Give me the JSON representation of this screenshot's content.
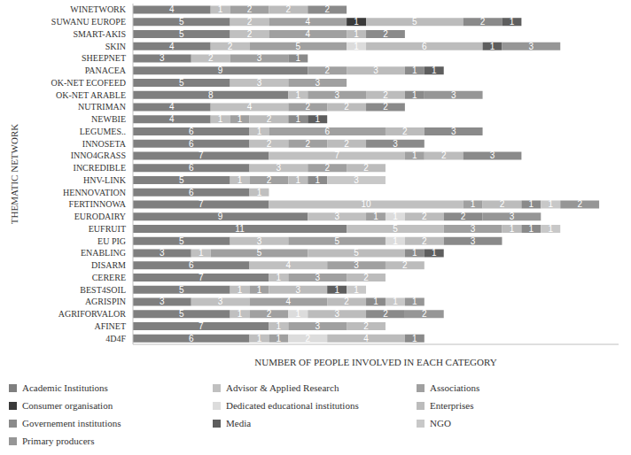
{
  "chart_data": {
    "type": "bar",
    "orientation": "horizontal",
    "stacked": true,
    "data_labels": true,
    "grid": false,
    "legend": "bottom",
    "tick_labels": "y",
    "x_label": "NUMBER OF PEOPLE INVOLVED IN EACH CATEGORY",
    "y_label": "THEMATIC NETWORK",
    "xlim": [
      0,
      25
    ],
    "categories": [
      "WINETWORK",
      "SUWANU EUROPE",
      "SMART-AKIS",
      "SKIN",
      "SHEEPNET",
      "PANACEA",
      "OK-NET ECOFEED",
      "OK-NET ARABLE",
      "NUTRIMAN",
      "NEWBIE",
      "LEGUMES..",
      "INNOSETA",
      "INNO4GRASS",
      "INCREDIBLE",
      "HNV-LINK",
      "HENNOVATION",
      "FERTINNOWA",
      "EURODAIRY",
      "EUFRUIT",
      "EU PIG",
      "ENABLING",
      "DISARM",
      "CERERE",
      "BEST4SOIL",
      "AGRISPIN",
      "AGRIFORVALOR",
      "AFINET",
      "4D4F"
    ],
    "series": [
      {
        "name": "Academic Institutions",
        "color": "#7f7f7f",
        "values": [
          4,
          5,
          5,
          4,
          3,
          9,
          5,
          8,
          4,
          4,
          6,
          6,
          7,
          6,
          5,
          6,
          7,
          9,
          11,
          5,
          3,
          6,
          7,
          5,
          3,
          5,
          7,
          6
        ]
      },
      {
        "name": "Advisor & Applied Research",
        "color": "#c0c0c0",
        "values": [
          1,
          2,
          2,
          2,
          2,
          null,
          3,
          1,
          4,
          1,
          1,
          2,
          7,
          3,
          1,
          1,
          10,
          3,
          5,
          3,
          1,
          4,
          1,
          1,
          3,
          1,
          1,
          1
        ]
      },
      {
        "name": "Associations",
        "color": "#a0a0a0",
        "values": [
          2,
          4,
          4,
          5,
          3,
          2,
          3,
          3,
          2,
          1,
          6,
          2,
          1,
          2,
          2,
          null,
          1,
          1,
          3,
          5,
          5,
          3,
          3,
          1,
          4,
          2,
          3,
          1
        ]
      },
      {
        "name": "Consumer organisation",
        "color": "#3a3a3a",
        "values": [
          null,
          1,
          null,
          null,
          null,
          null,
          null,
          null,
          null,
          null,
          null,
          null,
          null,
          null,
          null,
          null,
          null,
          null,
          null,
          null,
          null,
          null,
          null,
          null,
          null,
          null,
          null,
          null
        ]
      },
      {
        "name": "Dedicated educational institutions",
        "color": "#dcdcdc",
        "values": [
          null,
          null,
          null,
          1,
          null,
          null,
          null,
          null,
          null,
          null,
          null,
          null,
          null,
          null,
          null,
          null,
          null,
          1,
          null,
          1,
          null,
          null,
          null,
          null,
          null,
          1,
          null,
          2
        ]
      },
      {
        "name": "Enterprises",
        "color": "#bcbcbc",
        "values": [
          2,
          5,
          1,
          6,
          null,
          3,
          null,
          2,
          2,
          2,
          2,
          2,
          2,
          2,
          1,
          null,
          2,
          2,
          1,
          2,
          5,
          2,
          2,
          3,
          2,
          3,
          2,
          4
        ]
      },
      {
        "name": "Governement institutions",
        "color": "#8a8a8a",
        "values": [
          2,
          2,
          2,
          null,
          1,
          1,
          null,
          1,
          2,
          1,
          3,
          3,
          3,
          null,
          1,
          null,
          1,
          2,
          1,
          3,
          1,
          null,
          null,
          null,
          1,
          2,
          null,
          1
        ]
      },
      {
        "name": "Media",
        "color": "#5e5e5e",
        "values": [
          null,
          1,
          null,
          1,
          null,
          1,
          null,
          null,
          null,
          1,
          null,
          null,
          null,
          null,
          null,
          null,
          null,
          null,
          null,
          null,
          1,
          null,
          null,
          1,
          null,
          null,
          null,
          null
        ]
      },
      {
        "name": "NGO",
        "color": "#c8c8c8",
        "values": [
          null,
          null,
          null,
          null,
          null,
          null,
          null,
          null,
          null,
          null,
          null,
          null,
          null,
          null,
          3,
          null,
          1,
          null,
          1,
          null,
          null,
          null,
          null,
          1,
          1,
          null,
          null,
          null
        ]
      },
      {
        "name": "Primary producers",
        "color": "#969696",
        "values": [
          null,
          null,
          null,
          3,
          null,
          null,
          null,
          3,
          null,
          null,
          null,
          null,
          null,
          null,
          null,
          null,
          2,
          3,
          null,
          null,
          null,
          null,
          null,
          null,
          1,
          2,
          null,
          null
        ]
      }
    ]
  }
}
